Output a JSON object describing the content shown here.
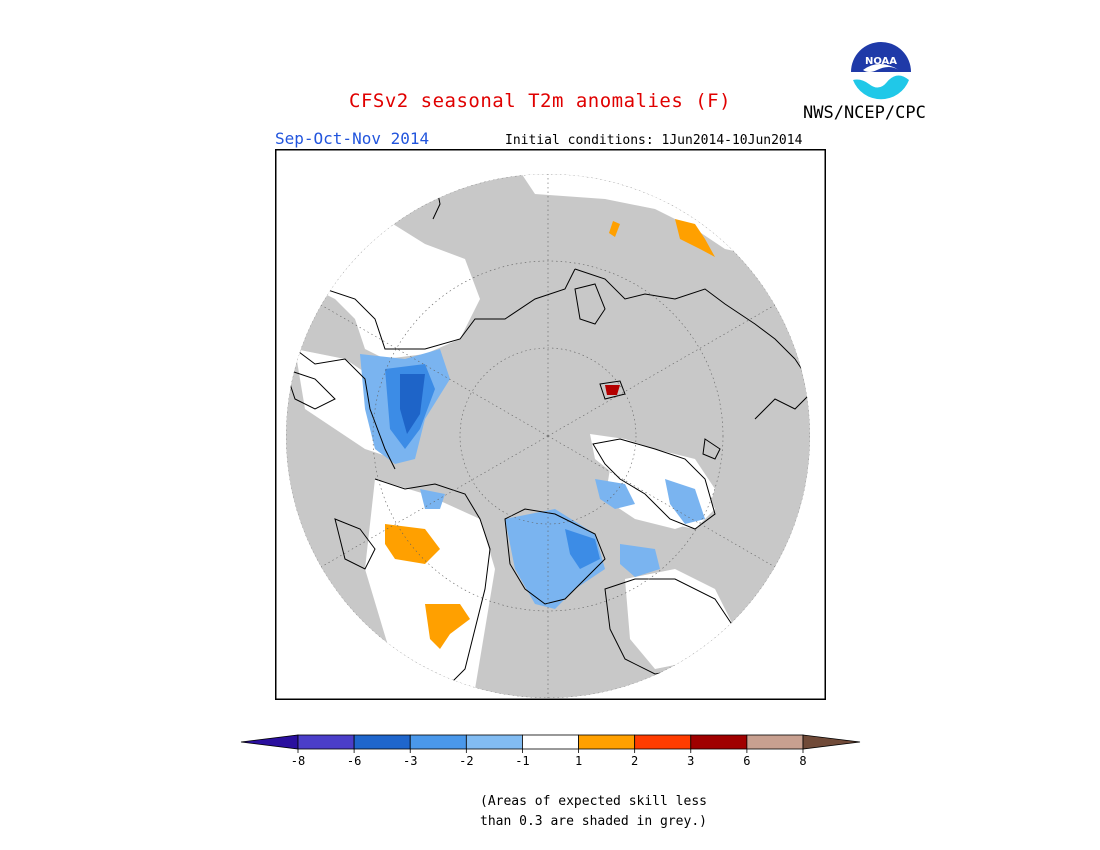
{
  "header": {
    "title": "CFSv2 seasonal T2m anomalies (F)",
    "agency": "NWS/NCEP/CPC",
    "season": "Sep-Oct-Nov 2014",
    "initial_conditions": "Initial conditions: 1Jun2014-10Jun2014",
    "logo_text": "NOAA"
  },
  "map": {
    "projection": "north-polar-stereographic",
    "grey_meaning": "expected skill less than 0.3",
    "colors": {
      "grey": "#c8c8c8",
      "white": "#ffffff",
      "coast": "#000000",
      "blue_light": "#7ab4f0",
      "blue_mid": "#3c8ce6",
      "blue_dark": "#1e64c8",
      "orange": "#ffa000",
      "red": "#b40000"
    }
  },
  "legend": {
    "ticks": [
      "-8",
      "-6",
      "-3",
      "-2",
      "-1",
      "1",
      "2",
      "3",
      "6",
      "8"
    ],
    "colors": [
      "#2a0f9e",
      "#4b3ec9",
      "#1f66cc",
      "#4a98ea",
      "#82bcf2",
      "#ffffff",
      "#ffa000",
      "#ff3c00",
      "#a00000",
      "#c8a090",
      "#704a38"
    ]
  },
  "footnote": {
    "line1": "(Areas of expected skill less",
    "line2": "than 0.3 are shaded in grey.)"
  }
}
